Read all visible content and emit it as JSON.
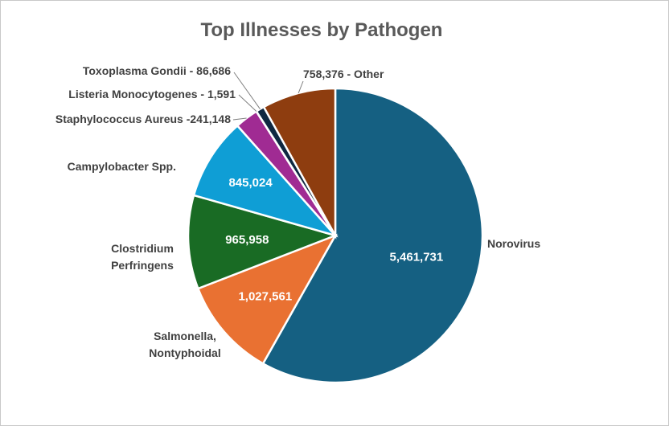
{
  "chart_data": {
    "type": "pie",
    "title": "Top Illnesses by Pathogen",
    "slices": [
      {
        "name": "Norovirus",
        "value": 5461731,
        "value_label": "5,461,731",
        "color": "#156082"
      },
      {
        "name": "Salmonella, Nontyphoidal",
        "name_lines": [
          "Salmonella,",
          "Nontyphoidal"
        ],
        "value": 1027561,
        "value_label": "1,027,561",
        "color": "#E97132"
      },
      {
        "name": "Clostridium Perfringens",
        "name_lines": [
          "Clostridium",
          "Perfringens"
        ],
        "value": 965958,
        "value_label": "965,958",
        "color": "#196B24"
      },
      {
        "name": "Campylobacter Spp.",
        "value": 845024,
        "value_label": "845,024",
        "color": "#0F9ED5"
      },
      {
        "name": "Staphylococcus Aureus",
        "value": 241148,
        "label": "Staphylococcus Aureus -241,148",
        "color": "#A02B93"
      },
      {
        "name": "Listeria Monocytogenes",
        "value": 1591,
        "label": "Listeria Monocytogenes - 1,591",
        "color": "#4EA72E"
      },
      {
        "name": "Toxoplasma Gondii",
        "value": 86686,
        "label": "Toxoplasma Gondii -  86,686",
        "color": "#0E2841"
      },
      {
        "name": "Other",
        "value": 758376,
        "label": "758,376 - Other",
        "color": "#8E3D0F"
      }
    ]
  }
}
